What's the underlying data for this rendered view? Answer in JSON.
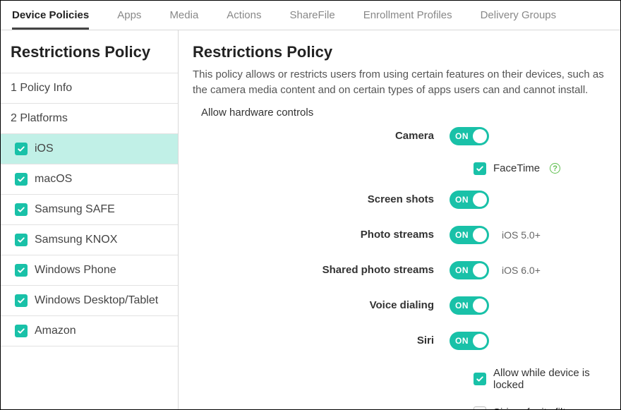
{
  "tabs": [
    {
      "label": "Device Policies",
      "active": true
    },
    {
      "label": "Apps",
      "active": false
    },
    {
      "label": "Media",
      "active": false
    },
    {
      "label": "Actions",
      "active": false
    },
    {
      "label": "ShareFile",
      "active": false
    },
    {
      "label": "Enrollment Profiles",
      "active": false
    },
    {
      "label": "Delivery Groups",
      "active": false
    }
  ],
  "sidebar": {
    "title": "Restrictions Policy",
    "items": [
      {
        "label": "1  Policy Info",
        "type": "step"
      },
      {
        "label": "2  Platforms",
        "type": "step"
      },
      {
        "label": "iOS",
        "type": "platform",
        "checked": true,
        "selected": true
      },
      {
        "label": "macOS",
        "type": "platform",
        "checked": true
      },
      {
        "label": "Samsung SAFE",
        "type": "platform",
        "checked": true
      },
      {
        "label": "Samsung KNOX",
        "type": "platform",
        "checked": true
      },
      {
        "label": "Windows Phone",
        "type": "platform",
        "checked": true
      },
      {
        "label": "Windows Desktop/Tablet",
        "type": "platform",
        "checked": true
      },
      {
        "label": "Amazon",
        "type": "platform",
        "checked": true
      }
    ]
  },
  "main": {
    "title": "Restrictions Policy",
    "description": "This policy allows or restricts users from using certain features on their devices, such as the camera media content and on certain types of apps users can and cannot install.",
    "section": "Allow hardware controls",
    "rows": [
      {
        "label": "Camera",
        "on": true,
        "sub": {
          "checked": true,
          "label": "FaceTime",
          "help": true
        }
      },
      {
        "label": "Screen shots",
        "on": true
      },
      {
        "label": "Photo streams",
        "on": true,
        "suffix": "iOS 5.0+"
      },
      {
        "label": "Shared photo streams",
        "on": true,
        "suffix": "iOS 6.0+"
      },
      {
        "label": "Voice dialing",
        "on": true
      },
      {
        "label": "Siri",
        "on": true,
        "subs": [
          {
            "checked": true,
            "label": "Allow while device is locked"
          },
          {
            "checked": false,
            "label": "Siri profanity filter"
          }
        ]
      }
    ],
    "toggle_on_text": "ON"
  },
  "colors": {
    "accent": "#19c1a8",
    "selected_bg": "#c1f0e7",
    "help_green": "#5fbf4f"
  }
}
